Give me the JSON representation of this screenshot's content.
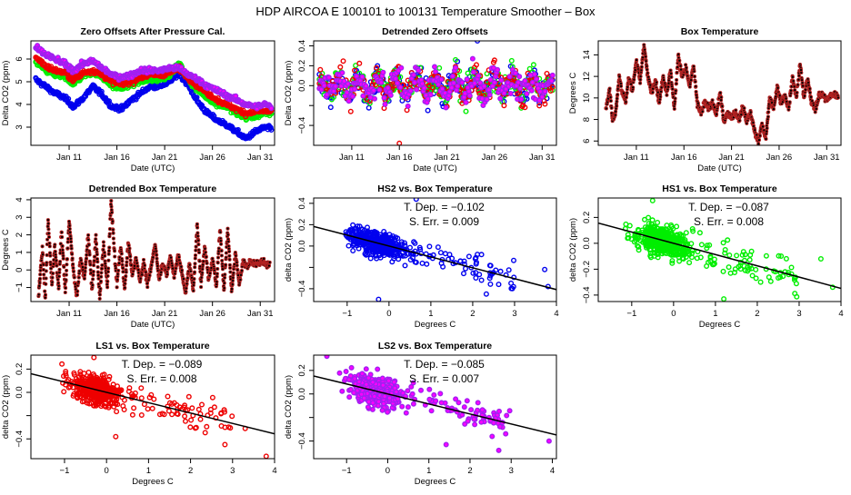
{
  "page_title": "HDP   AIRCOA E   100101 to 100131   Temperature Smoother – Box",
  "colors": {
    "HS2": "#0000ee",
    "HS1": "#00ee00",
    "LS1": "#ee0000",
    "LS2": "#a020f0",
    "LS2_fill": "#ff00ff",
    "box": "#b22222",
    "fit": "#000000"
  },
  "chart_data": [
    {
      "id": "zero-offsets",
      "type": "scatter",
      "title": "Zero Offsets After Pressure Cal.",
      "xlabel": "Date (UTC)",
      "ylabel": "Delta CO2 (ppm)",
      "xlim": [
        7,
        32.5
      ],
      "ylim": [
        2.2,
        6.8
      ],
      "xticks": [
        11,
        16,
        21,
        26,
        31
      ],
      "xticklabels": [
        "Jan 11",
        "Jan 16",
        "Jan 21",
        "Jan 26",
        "Jan 31"
      ],
      "yticks": [
        3,
        4,
        5,
        6
      ],
      "yticklabels": [
        "3",
        "4",
        "5",
        "6"
      ],
      "series": [
        {
          "name": "HS2",
          "color_key": "HS2",
          "x": [
            7.5,
            8.5,
            9.5,
            10.5,
            11.5,
            12.5,
            13.5,
            14.5,
            15.5,
            16.5,
            17.5,
            18.5,
            19.5,
            20.5,
            21.5,
            22.5,
            23.5,
            24.5,
            25.5,
            26.5,
            27.5,
            28.5,
            29.5,
            30.5,
            31.5,
            32.2
          ],
          "y": [
            5.1,
            4.8,
            4.5,
            4.3,
            3.9,
            4.3,
            4.8,
            4.4,
            3.9,
            3.8,
            4.2,
            4.5,
            4.8,
            4.8,
            5.0,
            5.4,
            4.8,
            4.1,
            3.6,
            3.3,
            3.1,
            2.8,
            2.5,
            2.8,
            3.0,
            2.9
          ]
        },
        {
          "name": "HS1",
          "color_key": "HS1",
          "x": [
            7.5,
            8.5,
            9.5,
            10.5,
            11.5,
            12.5,
            13.5,
            14.5,
            15.5,
            16.5,
            17.5,
            18.5,
            19.5,
            20.5,
            21.5,
            22.5,
            23.5,
            24.5,
            25.5,
            26.5,
            27.5,
            28.5,
            29.5,
            30.5,
            31.5,
            32.2
          ],
          "y": [
            5.9,
            5.5,
            5.3,
            5.2,
            4.9,
            5.3,
            5.4,
            5.2,
            4.8,
            4.7,
            4.9,
            5.0,
            5.1,
            5.1,
            5.3,
            5.8,
            5.1,
            4.6,
            4.3,
            4.0,
            3.9,
            3.6,
            3.4,
            3.5,
            3.6,
            3.6
          ]
        },
        {
          "name": "LS1",
          "color_key": "LS1",
          "x": [
            7.5,
            8.5,
            9.5,
            10.5,
            11.5,
            12.5,
            13.5,
            14.5,
            15.5,
            16.5,
            17.5,
            18.5,
            19.5,
            20.5,
            21.5,
            22.5,
            23.5,
            24.5,
            25.5,
            26.5,
            27.5,
            28.5,
            29.5,
            30.5,
            31.5,
            32.2
          ],
          "y": [
            6.1,
            5.7,
            5.5,
            5.4,
            5.1,
            5.4,
            5.5,
            5.3,
            5.0,
            4.9,
            5.0,
            5.2,
            5.3,
            5.3,
            5.4,
            5.6,
            5.2,
            4.8,
            4.5,
            4.2,
            4.0,
            3.8,
            3.6,
            3.7,
            3.7,
            3.7
          ]
        },
        {
          "name": "LS2",
          "color_key": "LS2",
          "x": [
            7.5,
            8.5,
            9.5,
            10.5,
            11.5,
            12.5,
            13.5,
            14.5,
            15.5,
            16.5,
            17.5,
            18.5,
            19.5,
            20.5,
            21.5,
            22.5,
            23.5,
            24.5,
            25.5,
            26.5,
            27.5,
            28.5,
            29.5,
            30.5,
            31.5,
            32.2
          ],
          "y": [
            6.5,
            6.2,
            6.0,
            5.8,
            5.5,
            5.8,
            5.9,
            5.6,
            5.3,
            5.2,
            5.3,
            5.5,
            5.5,
            5.5,
            5.6,
            5.6,
            5.3,
            5.1,
            4.8,
            4.6,
            4.4,
            4.2,
            4.0,
            3.9,
            4.0,
            3.9
          ]
        }
      ]
    },
    {
      "id": "detrended-zero-offsets",
      "type": "scatter",
      "title": "Detrended Zero Offsets",
      "xlabel": "Date (UTC)",
      "ylabel": "Delta CO2 (ppm)",
      "xlim": [
        7,
        32.5
      ],
      "ylim": [
        -0.6,
        0.45
      ],
      "xticks": [
        11,
        16,
        21,
        26,
        31
      ],
      "xticklabels": [
        "Jan 11",
        "Jan 16",
        "Jan 21",
        "Jan 26",
        "Jan 31"
      ],
      "yticks": [
        -0.4,
        -0.2,
        0.0,
        0.2,
        0.4
      ],
      "yticklabels": [
        "−0.4",
        "",
        "0.0",
        "0.2",
        "0.4"
      ],
      "series_note": "Four overlapping series (HS2, HS1, LS1, LS2) scattered between about -0.45 and 0.35 ppm; outliers at +0.45 (HS2, ~Jan 24) and -0.58 (LS1, ~Jan 16)",
      "series": [
        {
          "name": "HS2",
          "color_key": "HS2",
          "range": [
            -0.5,
            0.45
          ]
        },
        {
          "name": "HS1",
          "color_key": "HS1",
          "range": [
            -0.45,
            0.33
          ]
        },
        {
          "name": "LS1",
          "color_key": "LS1",
          "range": [
            -0.58,
            0.3
          ]
        },
        {
          "name": "LS2",
          "color_key": "LS2",
          "range": [
            -0.5,
            0.3
          ]
        }
      ]
    },
    {
      "id": "box-temperature",
      "type": "scatter",
      "title": "Box Temperature",
      "xlabel": "Date (UTC)",
      "ylabel": "Degrees C",
      "xlim": [
        7,
        32.5
      ],
      "ylim": [
        5.6,
        15.3
      ],
      "xticks": [
        11,
        16,
        21,
        26,
        31
      ],
      "xticklabels": [
        "Jan 11",
        "Jan 16",
        "Jan 21",
        "Jan 26",
        "Jan 31"
      ],
      "yticks": [
        6,
        8,
        10,
        12,
        14
      ],
      "yticklabels": [
        "6",
        "8",
        "10",
        "12",
        "14"
      ],
      "series": [
        {
          "name": "Box",
          "color_key": "box",
          "x": [
            7.8,
            8.2,
            8.5,
            8.8,
            9.2,
            9.5,
            9.9,
            10.2,
            10.6,
            11.0,
            11.4,
            11.8,
            12.2,
            12.6,
            13.0,
            13.4,
            13.8,
            14.2,
            14.6,
            15.0,
            15.4,
            15.8,
            16.2,
            16.6,
            17.0,
            17.4,
            17.8,
            18.2,
            18.6,
            19.0,
            19.4,
            19.8,
            20.2,
            20.6,
            21.0,
            21.4,
            21.8,
            22.2,
            22.6,
            23.0,
            23.4,
            23.8,
            24.2,
            24.6,
            25.0,
            25.4,
            25.8,
            26.2,
            26.6,
            27.0,
            27.4,
            27.8,
            28.2,
            28.6,
            29.0,
            29.4,
            29.8,
            30.2,
            30.6,
            31.0,
            31.4,
            31.8,
            32.2
          ],
          "y": [
            9.0,
            10.8,
            8.0,
            8.5,
            12.0,
            10.5,
            9.8,
            11.8,
            10.8,
            13.5,
            11.5,
            15.0,
            12.0,
            10.5,
            11.8,
            9.5,
            12.0,
            10.5,
            12.5,
            9.0,
            14.0,
            12.0,
            12.8,
            11.0,
            13.0,
            9.5,
            8.5,
            9.8,
            9.0,
            9.5,
            8.5,
            10.5,
            7.8,
            8.6,
            8.2,
            8.6,
            8.0,
            9.2,
            7.8,
            8.6,
            7.0,
            6.0,
            7.5,
            6.2,
            10.0,
            9.0,
            11.0,
            9.5,
            10.2,
            9.0,
            12.0,
            10.0,
            13.2,
            10.0,
            11.8,
            9.5,
            9.0,
            10.3,
            10.3,
            9.8,
            10.2,
            10.3,
            10.2
          ]
        }
      ]
    },
    {
      "id": "detrended-box-temperature",
      "type": "scatter",
      "title": "Detrended Box Temperature",
      "xlabel": "Date (UTC)",
      "ylabel": "Degrees C",
      "xlim": [
        7,
        32.5
      ],
      "ylim": [
        -1.8,
        4.1
      ],
      "xticks": [
        11,
        16,
        21,
        26,
        31
      ],
      "xticklabels": [
        "Jan 11",
        "Jan 16",
        "Jan 21",
        "Jan 26",
        "Jan 31"
      ],
      "yticks": [
        -1,
        0,
        1,
        2,
        3,
        4
      ],
      "yticklabels": [
        "−1",
        "0",
        "1",
        "2",
        "3",
        "4"
      ],
      "series": [
        {
          "name": "Box",
          "color_key": "box",
          "x": [
            7.8,
            8.2,
            8.5,
            8.8,
            9.2,
            9.5,
            9.9,
            10.2,
            10.6,
            11.0,
            11.4,
            11.8,
            12.2,
            12.6,
            13.0,
            13.4,
            13.8,
            14.2,
            14.6,
            15.0,
            15.4,
            15.8,
            16.0,
            16.4,
            16.8,
            17.2,
            17.6,
            18.0,
            18.4,
            18.8,
            19.2,
            19.6,
            20.0,
            20.4,
            20.8,
            21.2,
            21.6,
            22.0,
            22.4,
            22.8,
            23.2,
            23.6,
            24.0,
            24.4,
            24.8,
            25.2,
            25.6,
            26.0,
            26.4,
            26.8,
            27.2,
            27.6,
            28.0,
            28.4,
            28.8,
            29.2,
            29.6,
            30.0,
            30.4,
            30.8,
            31.2,
            31.6,
            32.0
          ],
          "y": [
            -1.4,
            1.2,
            -1.6,
            2.8,
            -0.8,
            1.3,
            -1.0,
            2.2,
            -1.2,
            2.8,
            0.2,
            -1.5,
            0.6,
            -0.5,
            2.0,
            -1.2,
            1.9,
            -1.6,
            1.5,
            -1.0,
            3.9,
            0.5,
            -0.8,
            1.4,
            -1.1,
            1.6,
            -0.3,
            0.7,
            -0.6,
            0.4,
            -0.8,
            0.2,
            1.5,
            -0.5,
            0.4,
            -0.3,
            0.8,
            -0.4,
            0.9,
            -0.2,
            -1.3,
            0.4,
            -1.2,
            2.6,
            -0.8,
            1.4,
            -0.6,
            0.6,
            -0.9,
            2.3,
            -1.1,
            2.3,
            -1.2,
            1.0,
            -0.8,
            0.5,
            0.2,
            0.5,
            0.3,
            0.4,
            0.5,
            0.3,
            0.4
          ]
        }
      ]
    },
    {
      "id": "hs2-vs-box",
      "type": "scatter",
      "title": "HS2 vs. Box Temperature",
      "xlabel": "Degrees C",
      "ylabel": "delta CO2 (ppm)",
      "xlim": [
        -1.8,
        4.0
      ],
      "ylim": [
        -0.52,
        0.45
      ],
      "xticks": [
        -1,
        0,
        1,
        2,
        3,
        4
      ],
      "xticklabels": [
        "−1",
        "0",
        "1",
        "2",
        "3",
        "4"
      ],
      "yticks": [
        -0.4,
        -0.2,
        0.0,
        0.2,
        0.4
      ],
      "yticklabels": [
        "−0.4",
        "",
        "0.0",
        "0.2",
        "0.4"
      ],
      "annotation": {
        "t_dep_label": "T. Dep. =",
        "t_dep": "−0.102",
        "s_err_label": "S. Err. =",
        "s_err": "0.009"
      },
      "fit": {
        "slope": -0.102,
        "intercept": 0.0
      },
      "color_key": "HS2",
      "points_summary": "Dense cloud between x=-1.5..0.8, y=-0.3..0.3; sparse points to x=3.8",
      "outliers": [
        [
          -0.25,
          -0.5
        ],
        [
          0.65,
          0.44
        ],
        [
          3.8,
          -0.38
        ],
        [
          3.72,
          -0.22
        ]
      ]
    },
    {
      "id": "hs1-vs-box",
      "type": "scatter",
      "title": "HS1 vs. Box Temperature",
      "xlabel": "Degrees C",
      "ylabel": "delta CO2 (ppm)",
      "xlim": [
        -1.8,
        4.0
      ],
      "ylim": [
        -0.45,
        0.35
      ],
      "xticks": [
        -1,
        0,
        1,
        2,
        3,
        4
      ],
      "xticklabels": [
        "−1",
        "0",
        "1",
        "2",
        "3",
        "4"
      ],
      "yticks": [
        -0.4,
        -0.2,
        0.0,
        0.2
      ],
      "yticklabels": [
        "−0.4",
        "−0.2",
        "0.0",
        "0.2"
      ],
      "annotation": {
        "t_dep_label": "T. Dep. =",
        "t_dep": "−0.087",
        "s_err_label": "S. Err. =",
        "s_err": "0.008"
      },
      "fit": {
        "slope": -0.087,
        "intercept": 0.0
      },
      "color_key": "HS1",
      "points_summary": "Dense cloud between x=-1.5..0.8, y=-0.3..0.3; sparse points to x=3.8",
      "outliers": [
        [
          3.8,
          -0.34
        ],
        [
          3.52,
          -0.12
        ],
        [
          1.2,
          -0.43
        ],
        [
          -0.5,
          0.33
        ]
      ]
    },
    {
      "id": "ls1-vs-box",
      "type": "scatter",
      "title": "LS1 vs. Box Temperature",
      "xlabel": "Degrees C",
      "ylabel": "delta CO2 (ppm)",
      "xlim": [
        -1.8,
        4.0
      ],
      "ylim": [
        -0.57,
        0.32
      ],
      "xticks": [
        -1,
        0,
        1,
        2,
        3,
        4
      ],
      "xticklabels": [
        "−1",
        "0",
        "1",
        "2",
        "3",
        "4"
      ],
      "yticks": [
        -0.4,
        -0.2,
        0.0,
        0.2
      ],
      "yticklabels": [
        "−0.4",
        "",
        "0.0",
        "0.2"
      ],
      "annotation": {
        "t_dep_label": "T. Dep. =",
        "t_dep": "−0.089",
        "s_err_label": "S. Err. =",
        "s_err": "0.008"
      },
      "fit": {
        "slope": -0.089,
        "intercept": 0.0
      },
      "color_key": "LS1",
      "points_summary": "Dense cloud between x=-1.5..0.8, y=-0.3..0.3; sparse points to x=3.8",
      "outliers": [
        [
          3.8,
          -0.55
        ],
        [
          3.3,
          -0.31
        ],
        [
          0.22,
          -0.38
        ],
        [
          -0.3,
          0.3
        ]
      ]
    },
    {
      "id": "ls2-vs-box",
      "type": "scatter",
      "title": "LS2 vs. Box Temperature",
      "xlabel": "Degrees C",
      "ylabel": "delta CO2 (ppm)",
      "xlim": [
        -1.8,
        4.1
      ],
      "ylim": [
        -0.55,
        0.33
      ],
      "xticks": [
        -1,
        0,
        1,
        2,
        3,
        4
      ],
      "xticklabels": [
        "−1",
        "0",
        "1",
        "2",
        "3",
        "4"
      ],
      "yticks": [
        -0.4,
        -0.2,
        0.0,
        0.2
      ],
      "yticklabels": [
        "−0.4",
        "",
        "0.0",
        "0.2"
      ],
      "annotation": {
        "t_dep_label": "T. Dep. =",
        "t_dep": "−0.085",
        "s_err_label": "S. Err. =",
        "s_err": "0.007"
      },
      "fit": {
        "slope": -0.085,
        "intercept": 0.0
      },
      "color_key": "LS2",
      "points_summary": "Dense cloud between x=-1.5..0.8, y=-0.3..0.3; sparse points to x=3.9",
      "outliers": [
        [
          3.92,
          -0.4
        ],
        [
          2.7,
          -0.48
        ],
        [
          -1.48,
          0.32
        ],
        [
          1.42,
          -0.43
        ]
      ]
    }
  ]
}
